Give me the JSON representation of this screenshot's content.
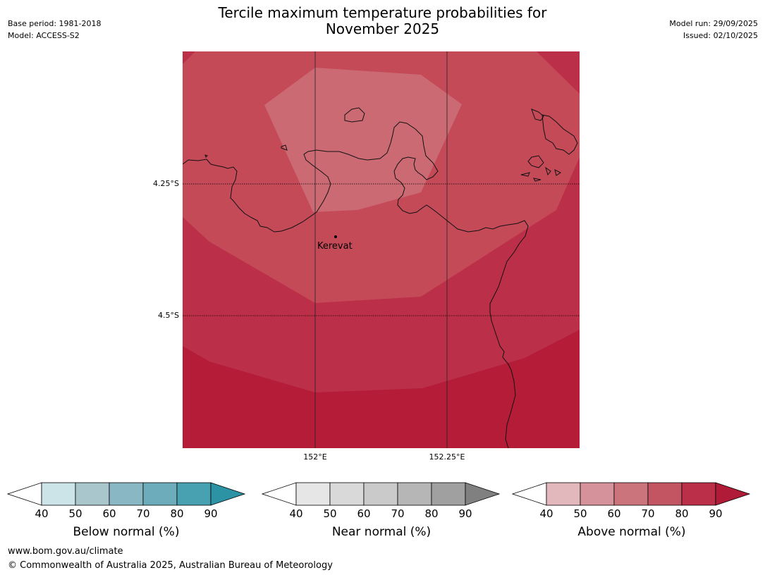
{
  "header": {
    "title_line1": "Tercile maximum temperature probabilities for",
    "title_line2": "November 2025",
    "base_period": "Base period: 1981-2018",
    "model": "Model: ACCESS-S2",
    "model_run": "Model run: 29/09/2025",
    "issued": "Issued: 02/10/2025"
  },
  "map": {
    "lat_labels": [
      "4.25°S",
      "4.5°S"
    ],
    "lon_labels": [
      "152°E",
      "152.25°E"
    ],
    "place": "Kerevat",
    "colors": {
      "band_90": "#b41c38",
      "band_80": "#bc2f48",
      "band_70": "#c44a58",
      "band_60": "#cc6a74",
      "coast": "#111111"
    }
  },
  "colorbars": [
    {
      "label": "Below normal (%)",
      "ticks": [
        "40",
        "50",
        "60",
        "70",
        "80",
        "90"
      ],
      "colors": [
        "#ffffff",
        "#cce3e8",
        "#a9c6cc",
        "#8ab7c4",
        "#6dadbb",
        "#48a1b0",
        "#2b93a3"
      ]
    },
    {
      "label": "Near normal (%)",
      "ticks": [
        "40",
        "50",
        "60",
        "70",
        "80",
        "90"
      ],
      "colors": [
        "#ffffff",
        "#e6e6e6",
        "#d9d9d9",
        "#cacaca",
        "#b6b6b6",
        "#a0a0a0",
        "#808080"
      ]
    },
    {
      "label": "Above normal (%)",
      "ticks": [
        "40",
        "50",
        "60",
        "70",
        "80",
        "90"
      ],
      "colors": [
        "#ffffff",
        "#e2b8bd",
        "#d6929a",
        "#cc747c",
        "#c35563",
        "#bc2f48",
        "#b01c38"
      ]
    }
  ],
  "footer": {
    "url": "www.bom.gov.au/climate",
    "copyright": "© Commonwealth of Australia 2025, Australian Bureau of Meteorology"
  }
}
